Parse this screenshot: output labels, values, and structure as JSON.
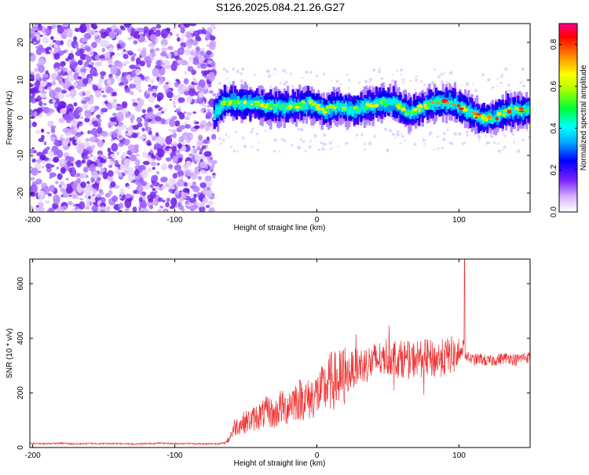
{
  "title": "S126.2025.084.21.26.G27",
  "colors": {
    "snr_line": "#ee3333",
    "frame": "#000000"
  },
  "chart_data": [
    {
      "type": "heatmap",
      "name": "spectrogram",
      "xlabel": "Height of straight line (km)",
      "ylabel": "Frequency (Hz)",
      "xlim": [
        -202,
        150
      ],
      "ylim": [
        -25,
        25
      ],
      "xticks": [
        -200,
        -100,
        0,
        100
      ],
      "yticks": [
        -20,
        -10,
        0,
        10,
        20
      ],
      "noise_region": {
        "x_start": -202,
        "x_end": -72
      },
      "ridge_center_hz": [
        [
          -74,
          0
        ],
        [
          -65,
          4
        ],
        [
          -55,
          4
        ],
        [
          -45,
          4
        ],
        [
          -35,
          3
        ],
        [
          -25,
          3
        ],
        [
          -15,
          3
        ],
        [
          -5,
          4
        ],
        [
          5,
          2
        ],
        [
          15,
          3
        ],
        [
          25,
          2
        ],
        [
          35,
          3
        ],
        [
          45,
          4
        ],
        [
          55,
          4
        ],
        [
          65,
          1
        ],
        [
          75,
          3
        ],
        [
          85,
          4
        ],
        [
          95,
          4
        ],
        [
          105,
          2
        ],
        [
          115,
          0
        ],
        [
          125,
          0
        ],
        [
          135,
          2
        ],
        [
          145,
          2
        ]
      ],
      "colorbar": {
        "label": "Normalized spectral amplitude",
        "range": [
          0.0,
          0.9
        ],
        "ticks": [
          0.0,
          0.2,
          0.4,
          0.6,
          0.8
        ],
        "tick_labels": [
          "0.0",
          "0.2",
          "0.4",
          "0.6",
          "0.8"
        ]
      }
    },
    {
      "type": "line",
      "name": "snr",
      "xlabel": "Height of straight line (km)",
      "ylabel": "SNR (10 * v/v)",
      "xlim": [
        -202,
        150
      ],
      "ylim": [
        0,
        690
      ],
      "xticks": [
        -200,
        -100,
        0,
        100
      ],
      "yticks": [
        0,
        200,
        400,
        600
      ],
      "series": [
        {
          "x": [
            -202,
            -190,
            -180,
            -170,
            -160,
            -150,
            -140,
            -130,
            -120,
            -110,
            -100,
            -90,
            -80,
            -70,
            -65,
            -62,
            -58,
            -54,
            -50,
            -46,
            -42,
            -38,
            -34,
            -30,
            -26,
            -22,
            -18,
            -14,
            -10,
            -6,
            -2,
            2,
            6,
            10,
            14,
            18,
            22,
            26,
            30,
            34,
            38,
            42,
            46,
            48,
            50,
            54,
            58,
            62,
            66,
            70,
            74,
            78,
            82,
            86,
            90,
            94,
            98,
            100,
            102,
            103,
            104,
            106,
            110,
            115,
            120,
            125,
            130,
            135,
            140,
            145,
            150
          ],
          "y": [
            15,
            14,
            16,
            13,
            15,
            14,
            15,
            13,
            14,
            16,
            14,
            15,
            13,
            14,
            16,
            30,
            75,
            85,
            95,
            100,
            115,
            120,
            135,
            115,
            150,
            140,
            170,
            175,
            180,
            175,
            190,
            200,
            220,
            245,
            245,
            255,
            270,
            290,
            300,
            305,
            310,
            320,
            325,
            340,
            330,
            335,
            320,
            330,
            315,
            330,
            325,
            330,
            320,
            325,
            330,
            340,
            335,
            340,
            345,
            380,
            350,
            330,
            320,
            325,
            315,
            320,
            325,
            330,
            320,
            330,
            330
          ]
        }
      ]
    }
  ]
}
